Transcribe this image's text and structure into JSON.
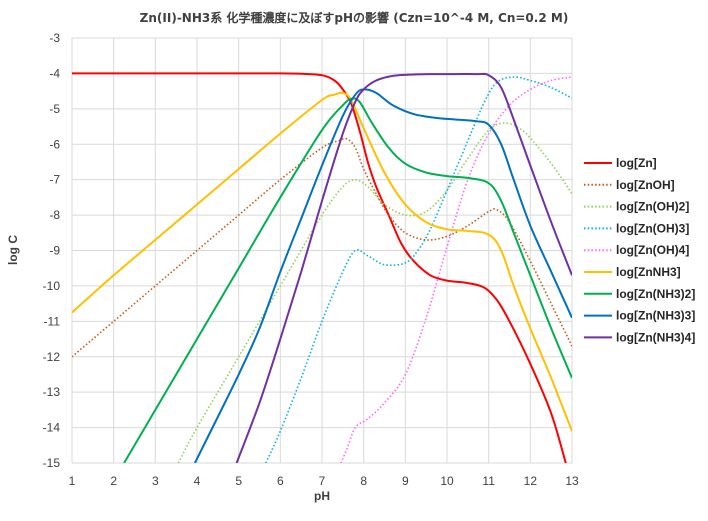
{
  "chart_data": {
    "type": "line",
    "title": "Zn(II)-NH3系 化学種濃度に及ぼすpHの影響 (Czn=10^-4 M, Cn=0.2 M)",
    "xlabel": "pH",
    "ylabel": "log C",
    "xlim": [
      1,
      13
    ],
    "ylim": [
      -15,
      -3
    ],
    "x_ticks": [
      "1",
      "2",
      "3",
      "4",
      "5",
      "6",
      "7",
      "8",
      "9",
      "10",
      "11",
      "12",
      "13"
    ],
    "y_ticks": [
      "-3",
      "-4",
      "-5",
      "-6",
      "-7",
      "-8",
      "-9",
      "-10",
      "-11",
      "-12",
      "-13",
      "-14",
      "-15"
    ],
    "grid": true,
    "legend_position": "right",
    "series": [
      {
        "name": "log[Zn]",
        "color": "#ff0000",
        "style": "solid",
        "points": [
          [
            1,
            -4.0
          ],
          [
            4,
            -4.0
          ],
          [
            6,
            -4.0
          ],
          [
            6.5,
            -4.01
          ],
          [
            7,
            -4.05
          ],
          [
            7.3,
            -4.2
          ],
          [
            7.5,
            -4.45
          ],
          [
            7.7,
            -4.85
          ],
          [
            7.9,
            -5.6
          ],
          [
            8.1,
            -6.5
          ],
          [
            8.3,
            -7.2
          ],
          [
            8.6,
            -8.0
          ],
          [
            8.9,
            -8.8
          ],
          [
            9.2,
            -9.3
          ],
          [
            9.6,
            -9.7
          ],
          [
            10,
            -9.85
          ],
          [
            10.5,
            -9.92
          ],
          [
            10.9,
            -10.05
          ],
          [
            11.2,
            -10.4
          ],
          [
            11.5,
            -11.0
          ],
          [
            12,
            -12.2
          ],
          [
            12.5,
            -13.6
          ],
          [
            12.85,
            -15.0
          ]
        ]
      },
      {
        "name": "log[ZnOH]",
        "color": "#c55a11",
        "style": "dotted",
        "points": [
          [
            1,
            -12.0
          ],
          [
            2,
            -11.0
          ],
          [
            3,
            -10.0
          ],
          [
            4,
            -9.0
          ],
          [
            5,
            -8.0
          ],
          [
            6,
            -7.0
          ],
          [
            7,
            -6.1
          ],
          [
            7.4,
            -5.9
          ],
          [
            7.6,
            -5.85
          ],
          [
            7.8,
            -6.1
          ],
          [
            8,
            -6.7
          ],
          [
            8.3,
            -7.4
          ],
          [
            8.6,
            -8.0
          ],
          [
            9,
            -8.5
          ],
          [
            9.5,
            -8.7
          ],
          [
            10,
            -8.6
          ],
          [
            10.5,
            -8.3
          ],
          [
            11,
            -7.9
          ],
          [
            11.2,
            -7.85
          ],
          [
            11.5,
            -8.2
          ],
          [
            12,
            -9.3
          ],
          [
            12.5,
            -10.5
          ],
          [
            13,
            -11.7
          ]
        ]
      },
      {
        "name": "log[Zn(OH)2]",
        "color": "#92d050",
        "style": "dotted",
        "points": [
          [
            3.55,
            -15.0
          ],
          [
            4,
            -14.0
          ],
          [
            5,
            -12.0
          ],
          [
            6,
            -10.0
          ],
          [
            7,
            -8.0
          ],
          [
            7.5,
            -7.2
          ],
          [
            7.8,
            -7.0
          ],
          [
            8.1,
            -7.2
          ],
          [
            8.5,
            -7.7
          ],
          [
            9,
            -8.0
          ],
          [
            9.5,
            -7.9
          ],
          [
            10,
            -7.3
          ],
          [
            10.5,
            -6.4
          ],
          [
            11,
            -5.6
          ],
          [
            11.4,
            -5.4
          ],
          [
            11.8,
            -5.6
          ],
          [
            12.2,
            -6.1
          ],
          [
            12.6,
            -6.7
          ],
          [
            13,
            -7.4
          ]
        ]
      },
      {
        "name": "log[Zn(OH)3]",
        "color": "#00b0f0",
        "style": "dotted",
        "points": [
          [
            5.65,
            -15.0
          ],
          [
            6,
            -14.1
          ],
          [
            6.5,
            -12.6
          ],
          [
            7,
            -11.0
          ],
          [
            7.5,
            -9.6
          ],
          [
            7.8,
            -9.0
          ],
          [
            8.1,
            -9.15
          ],
          [
            8.5,
            -9.4
          ],
          [
            9,
            -9.35
          ],
          [
            9.3,
            -9.0
          ],
          [
            9.6,
            -8.4
          ],
          [
            10,
            -7.3
          ],
          [
            10.5,
            -5.9
          ],
          [
            10.9,
            -4.8
          ],
          [
            11.2,
            -4.25
          ],
          [
            11.6,
            -4.1
          ],
          [
            12,
            -4.2
          ],
          [
            12.5,
            -4.4
          ],
          [
            13,
            -4.7
          ]
        ]
      },
      {
        "name": "log[Zn(OH)4]",
        "color": "#ff66ff",
        "style": "dotted",
        "points": [
          [
            7.45,
            -15.0
          ],
          [
            7.6,
            -14.6
          ],
          [
            7.8,
            -14.0
          ],
          [
            8.1,
            -13.75
          ],
          [
            8.5,
            -13.3
          ],
          [
            9,
            -12.5
          ],
          [
            9.5,
            -10.9
          ],
          [
            10,
            -8.9
          ],
          [
            10.5,
            -7.0
          ],
          [
            11,
            -5.7
          ],
          [
            11.5,
            -4.9
          ],
          [
            12,
            -4.45
          ],
          [
            12.5,
            -4.2
          ],
          [
            13,
            -4.1
          ]
        ]
      },
      {
        "name": "log[ZnNH3]",
        "color": "#ffc000",
        "style": "solid",
        "points": [
          [
            1,
            -10.75
          ],
          [
            2,
            -9.7
          ],
          [
            3,
            -8.7
          ],
          [
            4,
            -7.7
          ],
          [
            5,
            -6.7
          ],
          [
            6,
            -5.7
          ],
          [
            7,
            -4.75
          ],
          [
            7.3,
            -4.6
          ],
          [
            7.5,
            -4.55
          ],
          [
            7.7,
            -4.75
          ],
          [
            8,
            -5.55
          ],
          [
            8.5,
            -6.8
          ],
          [
            9,
            -7.7
          ],
          [
            9.5,
            -8.2
          ],
          [
            10,
            -8.4
          ],
          [
            10.5,
            -8.45
          ],
          [
            11,
            -8.55
          ],
          [
            11.3,
            -9.0
          ],
          [
            11.6,
            -10.0
          ],
          [
            12,
            -11.2
          ],
          [
            12.5,
            -12.6
          ],
          [
            13,
            -14.1
          ]
        ]
      },
      {
        "name": "log[Zn(NH3)2]",
        "color": "#00b050",
        "style": "solid",
        "points": [
          [
            2.25,
            -15.0
          ],
          [
            3,
            -13.5
          ],
          [
            4,
            -11.5
          ],
          [
            5,
            -9.5
          ],
          [
            6,
            -7.5
          ],
          [
            7,
            -5.6
          ],
          [
            7.5,
            -4.9
          ],
          [
            7.7,
            -4.72
          ],
          [
            7.9,
            -4.8
          ],
          [
            8.2,
            -5.4
          ],
          [
            8.6,
            -6.1
          ],
          [
            9,
            -6.55
          ],
          [
            9.5,
            -6.8
          ],
          [
            10,
            -6.9
          ],
          [
            10.5,
            -6.95
          ],
          [
            11,
            -7.1
          ],
          [
            11.3,
            -7.6
          ],
          [
            11.6,
            -8.5
          ],
          [
            12,
            -9.7
          ],
          [
            12.5,
            -11.2
          ],
          [
            13,
            -12.6
          ]
        ]
      },
      {
        "name": "log[Zn(NH3)3]",
        "color": "#0070c0",
        "style": "solid",
        "points": [
          [
            3.95,
            -15.0
          ],
          [
            4.5,
            -13.7
          ],
          [
            5,
            -12.5
          ],
          [
            5.5,
            -11.2
          ],
          [
            6,
            -9.6
          ],
          [
            6.5,
            -8.1
          ],
          [
            7,
            -6.6
          ],
          [
            7.5,
            -5.2
          ],
          [
            7.8,
            -4.6
          ],
          [
            8,
            -4.45
          ],
          [
            8.3,
            -4.55
          ],
          [
            8.7,
            -4.9
          ],
          [
            9.2,
            -5.15
          ],
          [
            9.7,
            -5.25
          ],
          [
            10.2,
            -5.3
          ],
          [
            10.7,
            -5.35
          ],
          [
            11,
            -5.45
          ],
          [
            11.3,
            -6.0
          ],
          [
            11.6,
            -7.0
          ],
          [
            12,
            -8.3
          ],
          [
            12.5,
            -9.6
          ],
          [
            13,
            -10.9
          ]
        ]
      },
      {
        "name": "log[Zn(NH3)4]",
        "color": "#7030a0",
        "style": "solid",
        "points": [
          [
            4.95,
            -15.0
          ],
          [
            5.5,
            -13.3
          ],
          [
            6,
            -11.5
          ],
          [
            6.5,
            -9.6
          ],
          [
            7,
            -7.6
          ],
          [
            7.5,
            -5.7
          ],
          [
            7.8,
            -4.8
          ],
          [
            8,
            -4.45
          ],
          [
            8.3,
            -4.2
          ],
          [
            8.7,
            -4.07
          ],
          [
            9.2,
            -4.03
          ],
          [
            9.7,
            -4.02
          ],
          [
            10.2,
            -4.02
          ],
          [
            10.7,
            -4.02
          ],
          [
            11,
            -4.05
          ],
          [
            11.3,
            -4.4
          ],
          [
            11.6,
            -5.3
          ],
          [
            12,
            -6.6
          ],
          [
            12.5,
            -8.2
          ],
          [
            13,
            -9.7
          ]
        ]
      }
    ]
  }
}
